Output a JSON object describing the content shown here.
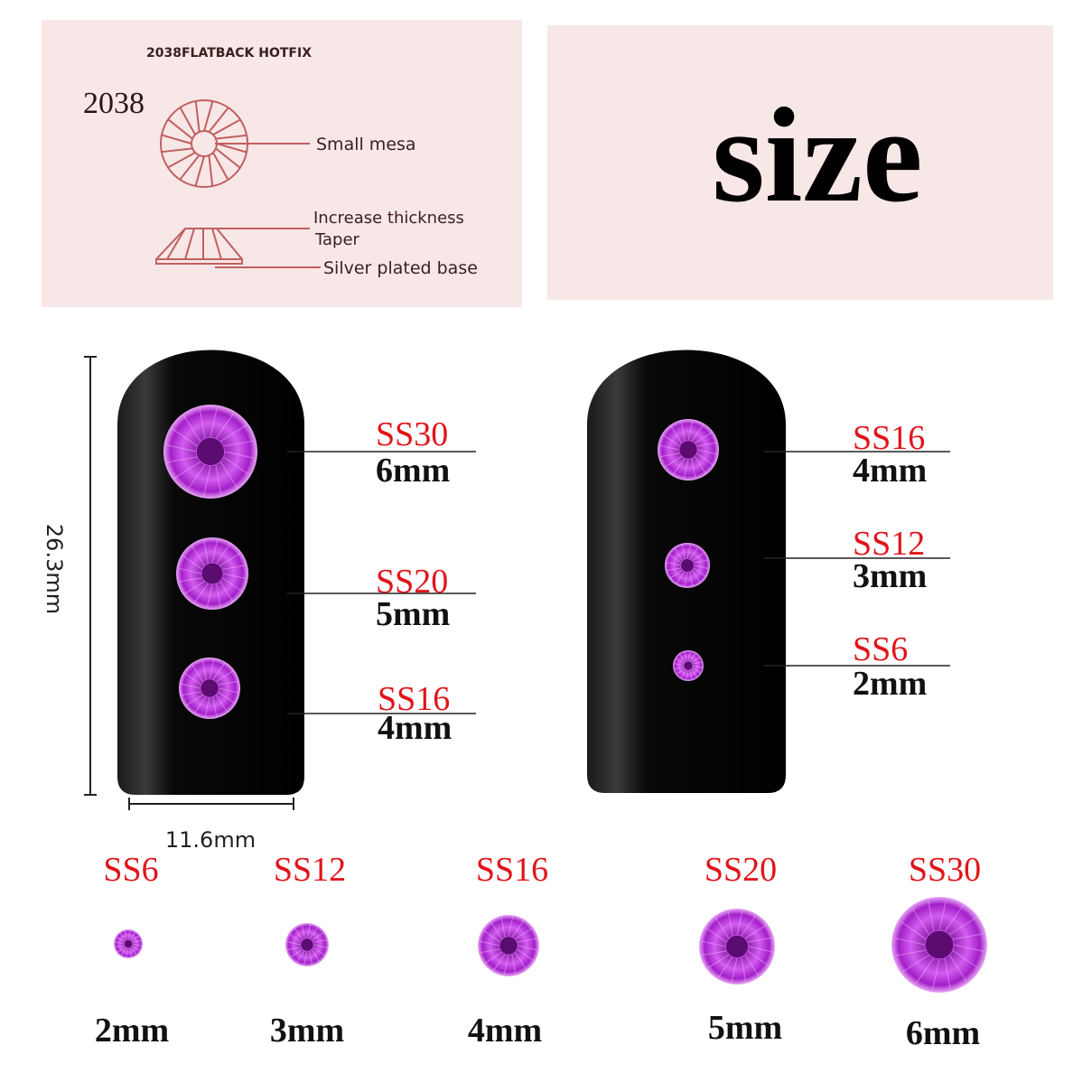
{
  "diagram_panel": {
    "title": "2038FLATBACK HOTFIX",
    "model": "2038",
    "labels": [
      "Small mesa",
      "Increase thickness",
      "Taper",
      "Silver plated base"
    ]
  },
  "headline": "size",
  "dimensions": {
    "height": "26.3mm",
    "width": "11.6mm"
  },
  "nail_left": [
    {
      "code": "SS30",
      "size": "6mm"
    },
    {
      "code": "SS20",
      "size": "5mm"
    },
    {
      "code": "SS16",
      "size": "4mm"
    }
  ],
  "nail_right": [
    {
      "code": "SS16",
      "size": "4mm"
    },
    {
      "code": "SS12",
      "size": "3mm"
    },
    {
      "code": "SS6",
      "size": "2mm"
    }
  ],
  "size_row": [
    {
      "code": "SS6",
      "size": "2mm"
    },
    {
      "code": "SS12",
      "size": "3mm"
    },
    {
      "code": "SS16",
      "size": "4mm"
    },
    {
      "code": "SS20",
      "size": "5mm"
    },
    {
      "code": "SS30",
      "size": "6mm"
    }
  ],
  "colors": {
    "label_red": "#e0141a",
    "panel_pink": "#f8e7e7",
    "gem_purple": "#b31fd6",
    "diagram_line": "#c0605f"
  }
}
